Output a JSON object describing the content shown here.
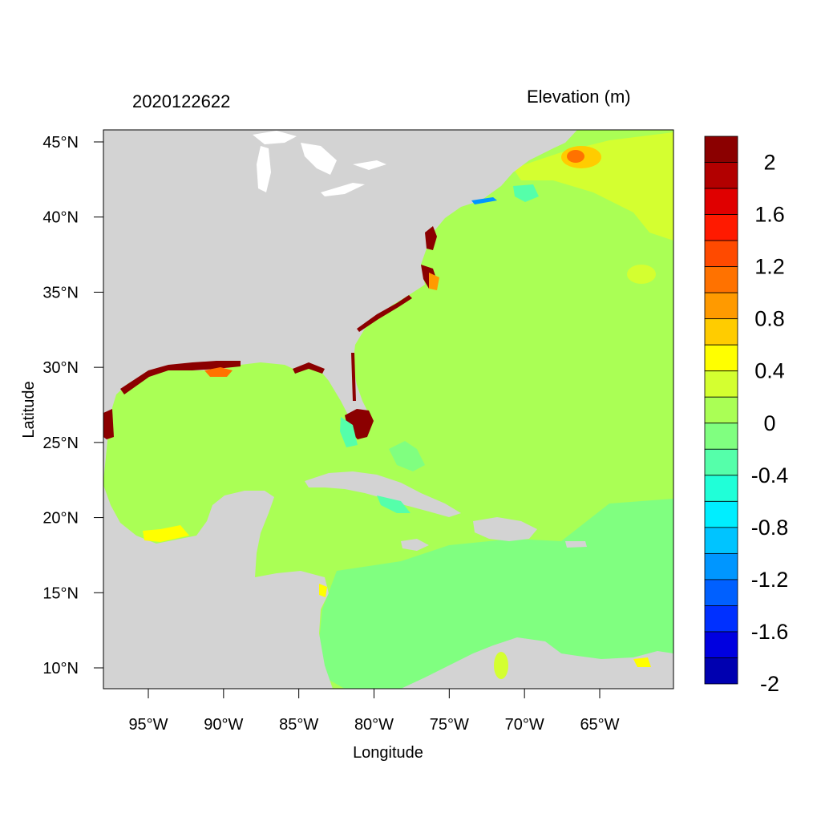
{
  "figure": {
    "timestamp": "2020122622",
    "colorbar_title": "Elevation (m)",
    "x_axis_title": "Longitude",
    "y_axis_title": "Latitude"
  },
  "x_ticks": [
    {
      "value": -95,
      "label": "95°W"
    },
    {
      "value": -90,
      "label": "90°W"
    },
    {
      "value": -85,
      "label": "85°W"
    },
    {
      "value": -80,
      "label": "80°W"
    },
    {
      "value": -75,
      "label": "75°W"
    },
    {
      "value": -70,
      "label": "70°W"
    },
    {
      "value": -65,
      "label": "65°W"
    }
  ],
  "y_ticks": [
    {
      "value": 45,
      "label": "45°N"
    },
    {
      "value": 40,
      "label": "40°N"
    },
    {
      "value": 35,
      "label": "35°N"
    },
    {
      "value": 30,
      "label": "30°N"
    },
    {
      "value": 25,
      "label": "25°N"
    },
    {
      "value": 20,
      "label": "20°N"
    },
    {
      "value": 15,
      "label": "15°N"
    },
    {
      "value": 10,
      "label": "10°N"
    }
  ],
  "colorbar": {
    "colors_top_to_bottom": [
      "#8b0000",
      "#b20000",
      "#e00000",
      "#ff1a00",
      "#ff4a00",
      "#ff7200",
      "#ff9a00",
      "#ffcc00",
      "#ffff00",
      "#d4ff30",
      "#aaff55",
      "#80ff80",
      "#55ffaa",
      "#20ffd8",
      "#00eeff",
      "#00c4ff",
      "#0096ff",
      "#0060ff",
      "#0030ff",
      "#0000e0",
      "#0000b0"
    ],
    "labels": [
      {
        "label": "2",
        "after_swatch": 1
      },
      {
        "label": "1.6",
        "after_swatch": 3
      },
      {
        "label": "1.2",
        "after_swatch": 5
      },
      {
        "label": "0.8",
        "after_swatch": 7
      },
      {
        "label": "0.4",
        "after_swatch": 9
      },
      {
        "label": "0",
        "after_swatch": 11
      },
      {
        "label": "-0.4",
        "after_swatch": 13
      },
      {
        "label": "-0.8",
        "after_swatch": 15
      },
      {
        "label": "-1.2",
        "after_swatch": 17
      },
      {
        "label": "-1.6",
        "after_swatch": 19
      },
      {
        "label": "-2",
        "after_swatch": 21
      }
    ]
  },
  "map_colors": {
    "land": "#d3d3d3",
    "lakes": "#ffffff",
    "ocean_0_to_0.2": "#aaff55",
    "ocean_neg0.2_to_0": "#80ff80",
    "surge_high": "#8b0000"
  }
}
